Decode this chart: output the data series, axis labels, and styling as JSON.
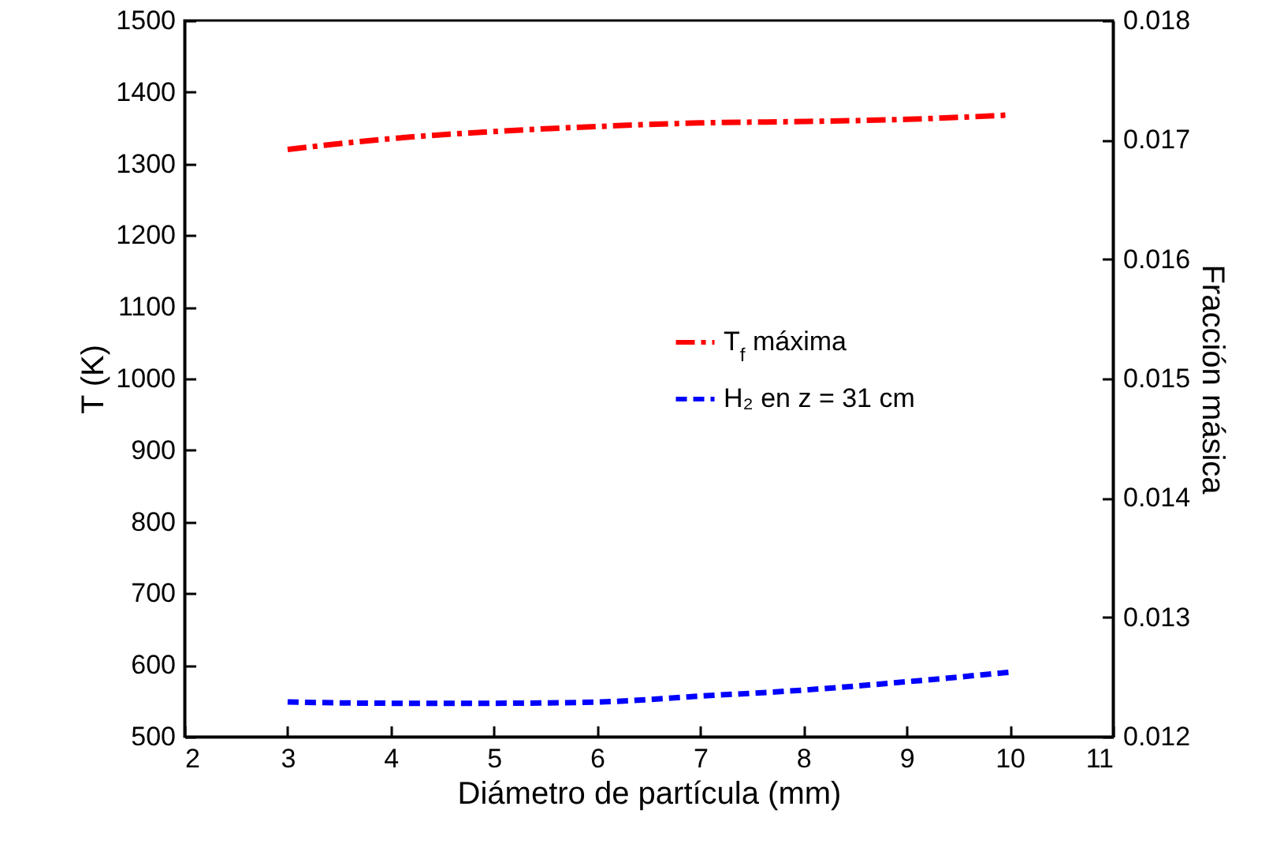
{
  "chart_data": {
    "type": "line",
    "xlabel": "Diámetro de partícula (mm)",
    "ylabel": "T (K)",
    "y2label": "Fracción másica",
    "x": [
      3,
      4,
      5,
      6,
      7,
      8,
      9,
      10
    ],
    "series": [
      {
        "name": "T$_{f}$ máxima",
        "color": "#ff0000",
        "line_style": "dashdot",
        "values": [
          1320,
          1335,
          1345,
          1352,
          1357,
          1359,
          1362,
          1368
        ]
      },
      {
        "name": "H₂ en z = 31 cm",
        "color": "#0000ff",
        "line_style": "dashed",
        "axis": "y2",
        "values": [
          0.01229,
          0.01228,
          0.01228,
          0.01229,
          0.01234,
          0.01239,
          0.01246,
          0.01254
        ]
      }
    ],
    "xlim": [
      2,
      11
    ],
    "xticks": [
      2,
      3,
      4,
      5,
      6,
      7,
      8,
      9,
      10,
      11
    ],
    "ylim": [
      500,
      1500
    ],
    "yticks": [
      500,
      600,
      700,
      800,
      900,
      1000,
      1100,
      1200,
      1300,
      1400,
      1500
    ],
    "y2lim": [
      0.012,
      0.018
    ],
    "y2ticks": [
      0.012,
      0.013,
      0.014,
      0.015,
      0.016,
      0.017,
      0.018
    ],
    "legend": "right",
    "grid": false
  }
}
